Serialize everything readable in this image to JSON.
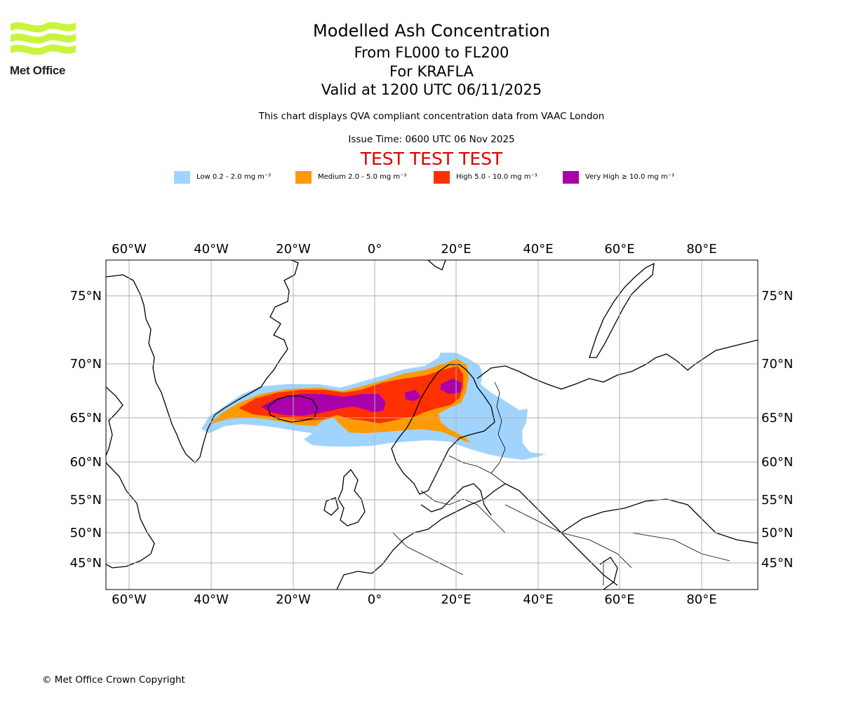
{
  "header": {
    "logo_text": "Met Office",
    "title": "Modelled Ash Concentration",
    "flight_levels": "From FL000 to FL200",
    "volcano": "For KRAFLA",
    "valid_time": "Valid at 1200 UTC 06/11/2025",
    "description": "This chart displays QVA compliant concentration data from VAAC London",
    "issue_time": "Issue Time: 0600 UTC 06 Nov 2025",
    "test_banner": "TEST TEST TEST"
  },
  "legend": {
    "items": [
      {
        "label": "Low 0.2 - 2.0 mg m⁻³",
        "color": "#a0d4ff"
      },
      {
        "label": "Medium 2.0 - 5.0 mg m⁻³",
        "color": "#ff9a00"
      },
      {
        "label": "High 5.0 - 10.0 mg m⁻³",
        "color": "#ff3000"
      },
      {
        "label": "Very High ≥ 10.0 mg m⁻³",
        "color": "#aa00aa"
      }
    ]
  },
  "map": {
    "longitude_labels": [
      "60°W",
      "40°W",
      "20°W",
      "0°",
      "20°E",
      "40°E",
      "60°E",
      "80°E"
    ],
    "latitude_labels": [
      "75°N",
      "70°N",
      "65°N",
      "60°N",
      "55°N",
      "50°N",
      "45°N"
    ]
  },
  "footer": {
    "copyright": "© Met Office Crown Copyright"
  }
}
